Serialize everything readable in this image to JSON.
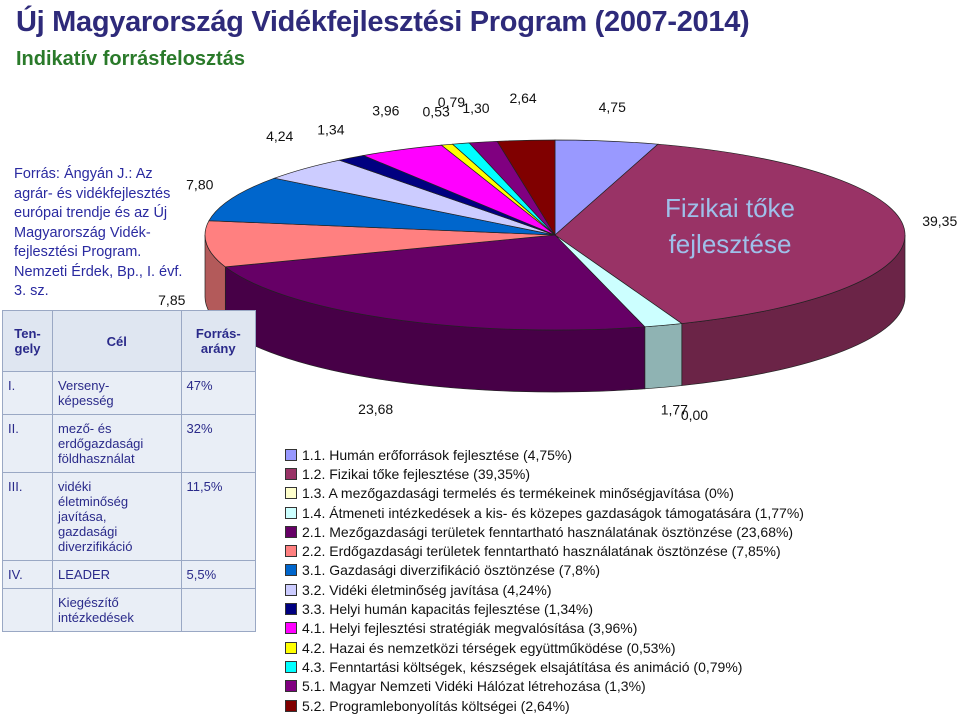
{
  "header": {
    "title": "Új Magyarország Vidékfejlesztési Program (2007-2014)",
    "subtitle": "Indikatív forrásfelosztás"
  },
  "source": "Forrás: Ángyán J.: Az agrár- és vidékfejlesztés európai trendje és az Új Magyarország Vidék-fejlesztési Program. Nemzeti Érdek, Bp., I. évf. 3. sz.",
  "table": {
    "header": [
      "Ten-\ngely",
      "Cél",
      "Forrás-\narány"
    ],
    "rows": [
      [
        "I.",
        "Verseny-\nképesség",
        "47%"
      ],
      [
        "II.",
        "mező- és\nerdőgazdasági\nföldhasználat",
        "32%"
      ],
      [
        "III.",
        "vidéki\néletminőség\njavítása,\ngazdasági\ndiverzifikáció",
        "11,5%"
      ],
      [
        "IV.",
        "LEADER",
        "5,5%"
      ],
      [
        "",
        "Kiegészítő\nintézkedések",
        ""
      ]
    ]
  },
  "chart_data": {
    "type": "pie",
    "categories": [
      "1.1. Humán erőforrások fejlesztése (4,75%)",
      "1.2. Fizikai tőke fejlesztése (39,35%)",
      "1.3. A mezőgazdasági termelés és termékeinek minőségjavítása (0%)",
      "1.4. Átmeneti intézkedések a kis- és közepes gazdaságok támogatására (1,77%)",
      "2.1. Mezőgazdasági területek fenntartható használatának ösztönzése (23,68%)",
      "2.2. Erdőgazdasági területek fenntartható használatának ösztönzése (7,85%)",
      "3.1. Gazdasági diverzifikáció ösztönzése (7,8%)",
      "3.2. Vidéki életminőség javítása (4,24%)",
      "3.3. Helyi humán kapacitás fejlesztése (1,34%)",
      "4.1. Helyi fejlesztési stratégiák megvalósítása (3,96%)",
      "4.2. Hazai és nemzetközi térségek együttműködése (0,53%)",
      "4.3. Fenntartási költségek, készségek elsajátítása és animáció (0,79%)",
      "5.1. Magyar Nemzeti Vidéki Hálózat létrehozása (1,3%)",
      "5.2. Programlebonyolítás költségei (2,64%)"
    ],
    "values": [
      4.75,
      39.35,
      0,
      1.77,
      23.68,
      7.85,
      7.8,
      4.24,
      1.34,
      3.96,
      0.53,
      0.79,
      1.3,
      2.64
    ],
    "value_labels": [
      "4,75",
      "39,35",
      "0,00",
      "1,77",
      "23,68",
      "7,85",
      "7,80",
      "4,24",
      "1,34",
      "3,96",
      "0,53",
      "0,79",
      "1,30",
      "2,64"
    ],
    "colors": [
      "#9999ff",
      "#993366",
      "#ffffcc",
      "#ccffff",
      "#660066",
      "#ff8080",
      "#0066cc",
      "#ccccff",
      "#000080",
      "#ff00ff",
      "#ffff00",
      "#00ffff",
      "#800080",
      "#800000"
    ],
    "annotation": [
      "Fizikai tőke",
      "fejlesztése"
    ]
  }
}
